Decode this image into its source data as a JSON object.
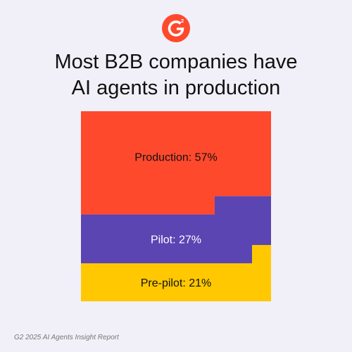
{
  "logo": {
    "icon": "g2-logo-icon",
    "text": "G2",
    "color": "#ff492c"
  },
  "title_lines": [
    "Most B2B companies have",
    "AI agents in production"
  ],
  "chart_data": {
    "type": "area",
    "title": "Most B2B companies have AI agents in production",
    "series": [
      {
        "name": "Production",
        "label": "Production: 57%",
        "value": 57,
        "color": "#ff492c",
        "text_color": "#111111"
      },
      {
        "name": "Pilot",
        "label": "Pilot: 27%",
        "value": 27,
        "color": "#5a45b3",
        "text_color": "#ffffff"
      },
      {
        "name": "Pre-pilot",
        "label": "Pre-pilot: 21%",
        "value": 21,
        "color": "#ffc800",
        "text_color": "#111111"
      }
    ],
    "grid": false,
    "legend": "none"
  },
  "footer": {
    "source": "G2 2025 AI Agents Insight Report"
  }
}
